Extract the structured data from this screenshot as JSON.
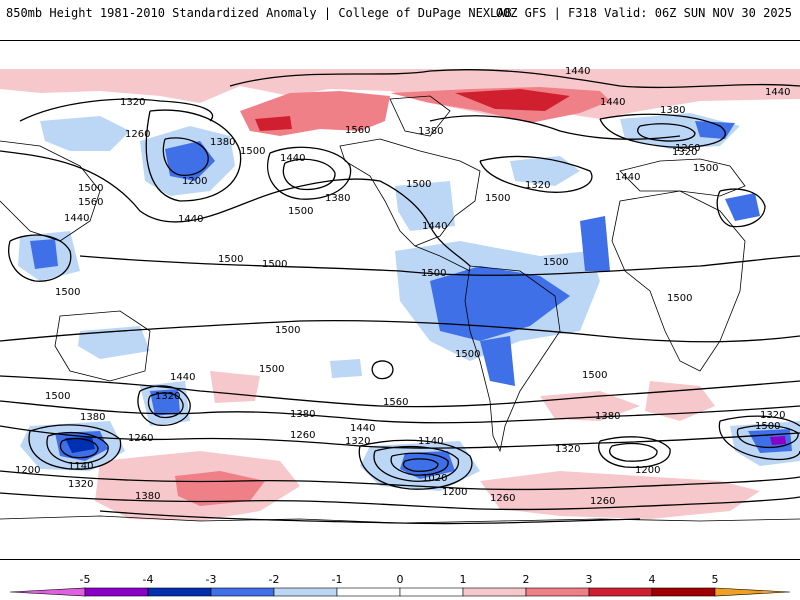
{
  "header": {
    "left_title": "850mb Height 1981-2010 Standardized Anomaly | College of DuPage NEXLAB",
    "right_title": "00Z GFS | F318 Valid: 06Z SUN NOV 30 2025"
  },
  "colors": {
    "neg5": "#e060e0",
    "neg4": "#8a00c8",
    "neg3": "#0030b0",
    "neg2": "#4070e8",
    "neg1": "#bcd6f6",
    "pos1": "#f6c8cc",
    "pos2": "#f08088",
    "pos3": "#d02030",
    "pos4": "#a00000",
    "pos5": "#f0a020",
    "contour": "#000000"
  },
  "colorbar": {
    "ticks": [
      "-5",
      "-4",
      "-3",
      "-2",
      "-1",
      "0",
      "1",
      "2",
      "3",
      "4",
      "5"
    ]
  },
  "contour_labels": [
    "1440",
    "1440",
    "1440",
    "1320",
    "1260",
    "1380",
    "1500",
    "1560",
    "1440",
    "1380",
    "1500",
    "1380",
    "1500",
    "1500",
    "1440",
    "1320",
    "1260",
    "1380",
    "1320",
    "1440",
    "1500",
    "1200",
    "1440",
    "1500",
    "1560",
    "1440",
    "1500",
    "1500",
    "1500",
    "1500",
    "1500",
    "1500",
    "1500",
    "1500",
    "1500",
    "1500",
    "1500",
    "1440",
    "1560",
    "1320",
    "1380",
    "1260",
    "1440",
    "1380",
    "1320",
    "1260",
    "1140",
    "1140",
    "1020",
    "1200",
    "1200",
    "1260",
    "1380",
    "1320",
    "1260",
    "1320",
    "1200",
    "1320",
    "1380",
    "1500"
  ]
}
